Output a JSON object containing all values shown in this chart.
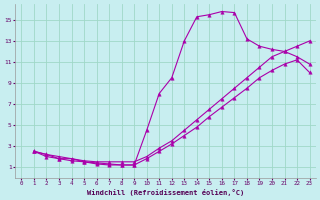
{
  "xlabel": "Windchill (Refroidissement éolien,°C)",
  "background_color": "#c8eef0",
  "grid_color": "#a0d8c8",
  "line_color": "#aa00aa",
  "xlim": [
    -0.5,
    23.5
  ],
  "ylim": [
    0,
    16.5
  ],
  "xticks": [
    0,
    1,
    2,
    3,
    4,
    5,
    6,
    7,
    8,
    9,
    10,
    11,
    12,
    13,
    14,
    15,
    16,
    17,
    18,
    19,
    20,
    21,
    22,
    23
  ],
  "yticks": [
    1,
    3,
    5,
    7,
    9,
    11,
    13,
    15
  ],
  "line1_x": [
    1,
    2,
    3,
    4,
    5,
    6,
    7,
    8,
    9,
    10,
    11,
    12,
    13,
    14,
    15,
    16,
    17,
    18,
    19,
    20,
    21,
    22,
    23
  ],
  "line1_y": [
    2.5,
    2.2,
    2.0,
    1.8,
    1.5,
    1.3,
    1.2,
    1.2,
    1.2,
    4.5,
    8.0,
    9.5,
    13.0,
    15.3,
    15.5,
    15.8,
    15.7,
    13.2,
    12.5,
    12.2,
    12.0,
    11.5,
    10.8
  ],
  "line2_x": [
    1,
    2,
    3,
    4,
    5,
    6,
    7,
    8,
    9,
    10,
    11,
    12,
    13,
    14,
    15,
    16,
    17,
    18,
    19,
    20,
    21,
    22,
    23
  ],
  "line2_y": [
    2.5,
    2.2,
    1.8,
    1.8,
    1.6,
    1.5,
    1.5,
    1.5,
    1.5,
    2.0,
    2.8,
    3.5,
    4.5,
    5.5,
    6.5,
    7.5,
    8.5,
    9.5,
    10.5,
    11.5,
    12.0,
    12.5,
    13.0
  ],
  "line3_x": [
    1,
    2,
    3,
    4,
    5,
    6,
    7,
    8,
    9,
    10,
    11,
    12,
    13,
    14,
    15,
    16,
    17,
    18,
    19,
    20,
    21,
    22,
    23
  ],
  "line3_y": [
    2.5,
    2.0,
    1.8,
    1.6,
    1.5,
    1.4,
    1.3,
    1.2,
    1.2,
    1.8,
    2.5,
    3.2,
    4.0,
    4.8,
    5.8,
    6.7,
    7.6,
    8.5,
    9.5,
    10.2,
    10.8,
    11.2,
    10.0
  ]
}
